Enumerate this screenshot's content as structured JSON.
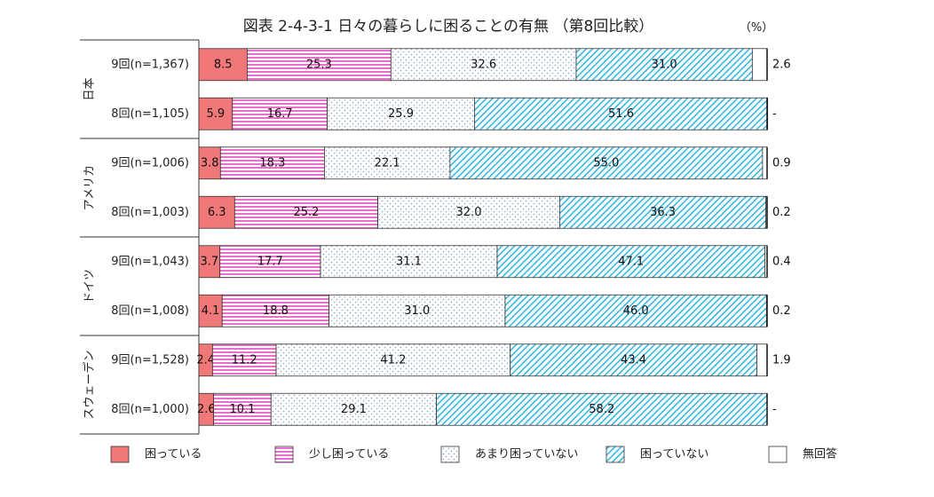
{
  "chart_data": {
    "type": "bar",
    "orientation": "horizontal",
    "stacked": true,
    "percent": true,
    "title": "図表 2-4-3-1 日々の暮らしに困ることの有無 （第8回比較）",
    "unit_label": "（%）",
    "xlim": [
      0,
      100
    ],
    "grid": false,
    "legend_position": "bottom",
    "groups": [
      {
        "label": "日本",
        "rows": [
          {
            "label": "9回(n=1,367)",
            "values": [
              8.5,
              25.3,
              32.6,
              31.0,
              2.6
            ],
            "labels": [
              "8.5",
              "25.3",
              "32.6",
              "31.0",
              "2.6"
            ]
          },
          {
            "label": "8回(n=1,105)",
            "values": [
              5.9,
              16.7,
              25.9,
              51.6,
              0
            ],
            "labels": [
              "5.9",
              "16.7",
              "25.9",
              "51.6",
              "-"
            ]
          }
        ]
      },
      {
        "label": "アメリカ",
        "rows": [
          {
            "label": "9回(n=1,006)",
            "values": [
              3.8,
              18.3,
              22.1,
              55.0,
              0.9
            ],
            "labels": [
              "3.8",
              "18.3",
              "22.1",
              "55.0",
              "0.9"
            ]
          },
          {
            "label": "8回(n=1,003)",
            "values": [
              6.3,
              25.2,
              32.0,
              36.3,
              0.2
            ],
            "labels": [
              "6.3",
              "25.2",
              "32.0",
              "36.3",
              "0.2"
            ]
          }
        ]
      },
      {
        "label": "ドイツ",
        "rows": [
          {
            "label": "9回(n=1,043)",
            "values": [
              3.7,
              17.7,
              31.1,
              47.1,
              0.4
            ],
            "labels": [
              "3.7",
              "17.7",
              "31.1",
              "47.1",
              "0.4"
            ]
          },
          {
            "label": "8回(n=1,008)",
            "values": [
              4.1,
              18.8,
              31.0,
              46.0,
              0.2
            ],
            "labels": [
              "4.1",
              "18.8",
              "31.0",
              "46.0",
              "0.2"
            ]
          }
        ]
      },
      {
        "label": "スウェーデン",
        "rows": [
          {
            "label": "9回(n=1,528)",
            "values": [
              2.4,
              11.2,
              41.2,
              43.4,
              1.9
            ],
            "labels": [
              "2.4",
              "11.2",
              "41.2",
              "43.4",
              "1.9"
            ]
          },
          {
            "label": "8回(n=1,000)",
            "values": [
              2.6,
              10.1,
              29.1,
              58.2,
              0
            ],
            "labels": [
              "2.6",
              "10.1",
              "29.1",
              "58.2",
              "-"
            ]
          }
        ]
      }
    ],
    "series": [
      {
        "name": "困っている",
        "pattern": "solid",
        "color": "#f07878"
      },
      {
        "name": "少し困っている",
        "pattern": "h-stripes",
        "color": "#e870c8"
      },
      {
        "name": "あまり困っていない",
        "pattern": "dots",
        "color": "#9ab0d0"
      },
      {
        "name": "困っていない",
        "pattern": "diagonal",
        "color": "#38b8e0"
      },
      {
        "name": "無回答",
        "pattern": "blank",
        "color": "#ffffff"
      }
    ]
  }
}
